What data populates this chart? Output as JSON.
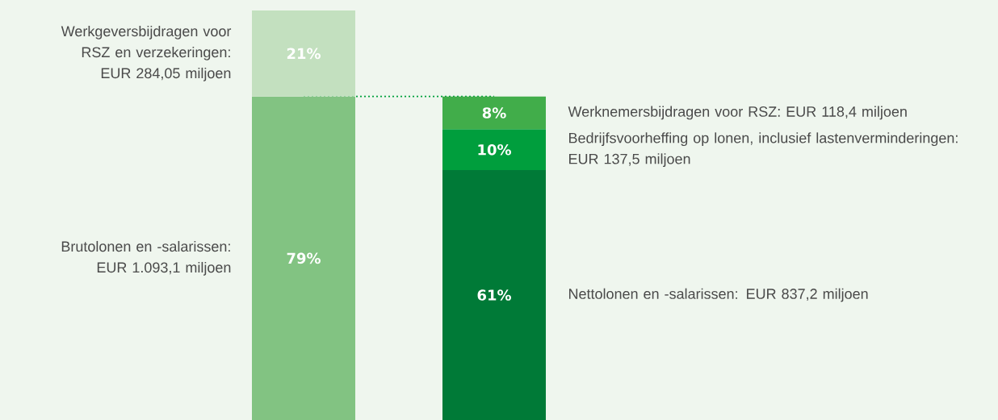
{
  "chart_data": {
    "type": "bar",
    "stacked": true,
    "categories": [
      null,
      null
    ],
    "series": [
      {
        "name": "Brutolonen en -salarissen: EUR 1.093,1 miljoen",
        "color": "#82c382",
        "values": [
          79,
          null
        ],
        "value_labels": [
          "79%",
          null
        ]
      },
      {
        "name": "Werkgeversbijdragen voor RSZ en verzekeringen: EUR 284,05 miljoen",
        "color": "#c3e0bf",
        "values": [
          21,
          null
        ],
        "value_labels": [
          "21%",
          null
        ]
      },
      {
        "name": "Nettolonen en -salarissen: EUR 837,2 miljoen",
        "color": "#007a37",
        "values": [
          null,
          61
        ],
        "value_labels": [
          null,
          "61%"
        ]
      },
      {
        "name": "Bedrijfsvoorheffing op lonen, inclusief lastenverminderingen: EUR 137,5 miljoen",
        "color": "#009e3d",
        "values": [
          null,
          10
        ],
        "value_labels": [
          null,
          "10%"
        ]
      },
      {
        "name": "Werknemersbijdragen voor RSZ: EUR 118,4 miljoen",
        "color": "#41ad4a",
        "values": [
          null,
          8
        ],
        "value_labels": [
          null,
          "8%"
        ]
      }
    ],
    "ref_lines": [
      {
        "axis": "y",
        "value": 79,
        "color": "#00a03c",
        "line_style": "dotted"
      }
    ]
  }
}
